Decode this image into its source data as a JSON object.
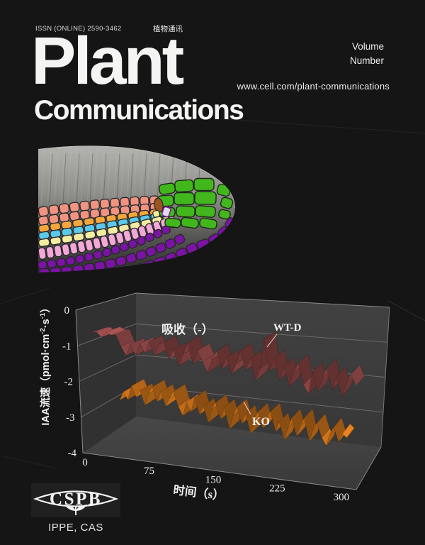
{
  "cover": {
    "issn": "ISSN (ONLINE) 2590-3462",
    "journal_name_cn": "植物通讯",
    "title_line1": "Plant",
    "title_line2": "Communications",
    "volume_label": "Volume",
    "number_label": "Number",
    "url": "www.cell.com/plant-communications"
  },
  "footer": {
    "logo_text": "CSPB",
    "affiliation": "IPPE, CAS"
  },
  "root_image": {
    "caption": "root tip micrograph with cell-type overlay",
    "layer_colors": {
      "body": [
        "#b3b3af",
        "#8e8e8a",
        "#565652",
        "#2e2e2c"
      ],
      "cortex_salmon": "#F09380",
      "endodermis_orange": "#F4A73C",
      "layer_cyan": "#5CC9E8",
      "layer_yellow": "#F3EDA2",
      "layer_pink": "#F3A8D8",
      "rootcap_purple": "#7B13A5",
      "columella_green": "#42B71D",
      "quiescent_center_brown": "#98551D",
      "stripe_cell": "#E2D9EC"
    }
  },
  "chart_data": {
    "type": "line",
    "variant": "3d-ribbon",
    "annotation": "吸收（-）",
    "xlabel": "时间（s）",
    "ylabel": "IAA流速（pmol·cm⁻²·s⁻¹）",
    "ylabel_parts": [
      "IAA流速（pmol·cm",
      "-2",
      "·s",
      "-1",
      "）"
    ],
    "x_ticks": [
      0,
      75,
      150,
      225,
      300
    ],
    "xlim": [
      0,
      320
    ],
    "y_ticks": [
      0,
      -1,
      -2,
      -3,
      -4
    ],
    "ylim": [
      -4,
      0
    ],
    "grid": true,
    "wall_color": "#3d3d3d",
    "series": [
      {
        "name": "WT-D",
        "color": "#A65252",
        "x_start": 2,
        "x_end": 316,
        "values": [
          -0.75,
          -0.72,
          -0.85,
          -0.68,
          -0.76,
          -0.72,
          -1.05,
          -1.3,
          -0.95,
          -1.25,
          -0.9,
          -1.15,
          -0.8,
          -1.2,
          -0.85,
          -0.78,
          -1.25,
          -0.95,
          -1.4,
          -1.05,
          -0.7,
          -1.3,
          -0.9,
          -1.2,
          -1.5,
          -1.1,
          -0.85,
          -1.35,
          -1.0,
          -1.45,
          -1.15,
          -0.75,
          -1.3,
          -0.95,
          -1.55,
          -1.2,
          -0.35,
          -1.25,
          -0.85,
          -1.45,
          -1.05,
          -1.6,
          -1.2,
          -0.9,
          -1.5,
          -1.75,
          -1.1,
          -1.65,
          -1.25,
          -0.95,
          -1.55,
          -1.15,
          -1.7,
          -1.3,
          -1.05,
          -1.35
        ]
      },
      {
        "name": "KO",
        "color": "#E8821E",
        "x_start": 45,
        "x_end": 316,
        "values": [
          -2.4,
          -2.15,
          -2.35,
          -1.95,
          -2.25,
          -2.05,
          -2.45,
          -2.1,
          -1.9,
          -2.3,
          -2.0,
          -2.4,
          -2.15,
          -1.95,
          -2.35,
          -2.6,
          -2.2,
          -2.45,
          -2.05,
          -2.5,
          -2.25,
          -2.7,
          -2.3,
          -2.1,
          -2.55,
          -2.2,
          -2.8,
          -2.4,
          -2.15,
          -2.6,
          -2.3,
          -2.85,
          -2.45,
          -2.2,
          -2.65,
          -2.35,
          -2.15,
          -2.7,
          -2.4,
          -2.9,
          -2.55,
          -2.25,
          -2.75,
          -2.45,
          -2.2,
          -2.85,
          -2.5,
          -2.3,
          -2.7,
          -2.9,
          -2.55,
          -2.35,
          -2.75,
          -2.5,
          -2.6,
          -2.45
        ]
      }
    ]
  }
}
